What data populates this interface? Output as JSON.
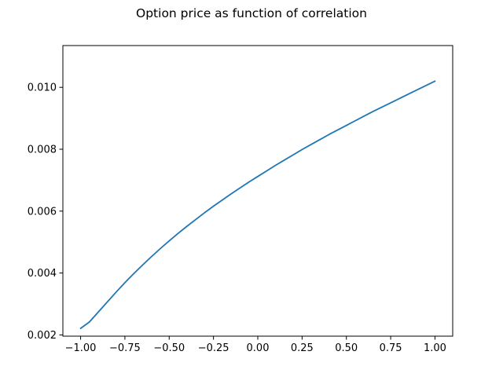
{
  "colors": {
    "line": "#1f77b4",
    "axes": "#000000",
    "background": "#ffffff"
  },
  "chart_data": {
    "type": "line",
    "title": "Option price as function of correlation",
    "xlabel": "",
    "ylabel": "",
    "grid": false,
    "legend": "none",
    "xlim": [
      -1.1,
      1.1
    ],
    "ylim": [
      0.00196,
      0.01135
    ],
    "xticks": [
      -1.0,
      -0.75,
      -0.5,
      -0.25,
      0.0,
      0.25,
      0.5,
      0.75,
      1.0
    ],
    "xtick_labels": [
      "−1.00",
      "−0.75",
      "−0.50",
      "−0.25",
      "0.00",
      "0.25",
      "0.50",
      "0.75",
      "1.00"
    ],
    "yticks": [
      0.002,
      0.004,
      0.006,
      0.008,
      0.01
    ],
    "ytick_labels": [
      "0.002",
      "0.004",
      "0.006",
      "0.008",
      "0.010"
    ],
    "series": [
      {
        "x": [
          -1.0,
          -0.95,
          -0.9,
          -0.85,
          -0.8,
          -0.75,
          -0.7,
          -0.65,
          -0.6,
          -0.55,
          -0.5,
          -0.45,
          -0.4,
          -0.35,
          -0.3,
          -0.25,
          -0.2,
          -0.15,
          -0.1,
          -0.05,
          0.0,
          0.05,
          0.1,
          0.15,
          0.2,
          0.25,
          0.3,
          0.35,
          0.4,
          0.45,
          0.5,
          0.55,
          0.6,
          0.65,
          0.7,
          0.75,
          0.8,
          0.85,
          0.9,
          0.95,
          1.0
        ],
        "values": [
          0.00221,
          0.00242,
          0.00274,
          0.00306,
          0.00338,
          0.00369,
          0.00398,
          0.00426,
          0.00453,
          0.00479,
          0.00504,
          0.00528,
          0.00551,
          0.00573,
          0.00595,
          0.00616,
          0.00636,
          0.00656,
          0.00675,
          0.00694,
          0.00712,
          0.0073,
          0.00748,
          0.00765,
          0.00782,
          0.00799,
          0.00815,
          0.00831,
          0.00847,
          0.00862,
          0.00877,
          0.00892,
          0.00907,
          0.00922,
          0.00936,
          0.0095,
          0.00964,
          0.00978,
          0.00992,
          0.01006,
          0.0102
        ]
      }
    ]
  }
}
